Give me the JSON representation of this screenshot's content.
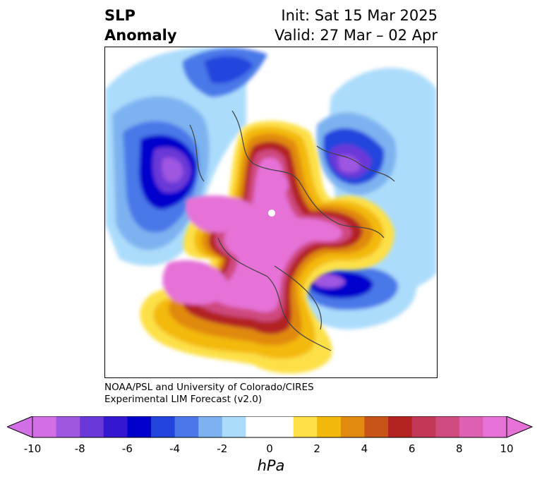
{
  "header": {
    "variable_line1": "SLP",
    "variable_line2": "Anomaly",
    "init_text": "Init: Sat 15 Mar 2025",
    "valid_text": "Valid: 27 Mar – 02 Apr"
  },
  "credit": {
    "line1": "NOAA/PSL and University of Colorado/CIRES",
    "line2": "Experimental LIM Forecast (v2.0)"
  },
  "colorbar": {
    "ticks": [
      "-10",
      "-8",
      "-6",
      "-4",
      "-2",
      "0",
      "2",
      "4",
      "6",
      "8",
      "10"
    ],
    "units": "hPa",
    "colors": [
      "#d36fe6",
      "#9f56e0",
      "#6a38d8",
      "#3417d0",
      "#0000cc",
      "#2244dd",
      "#4a78e8",
      "#7db2f0",
      "#acdcfb",
      "#ffffff",
      "#ffffff",
      "#fde047",
      "#f3b90a",
      "#e08a0e",
      "#c85418",
      "#b32320",
      "#c23656",
      "#cf4a7f",
      "#dd60b3",
      "#e672d8"
    ],
    "min_color": "#d36fe6",
    "max_color": "#e672d8"
  }
}
